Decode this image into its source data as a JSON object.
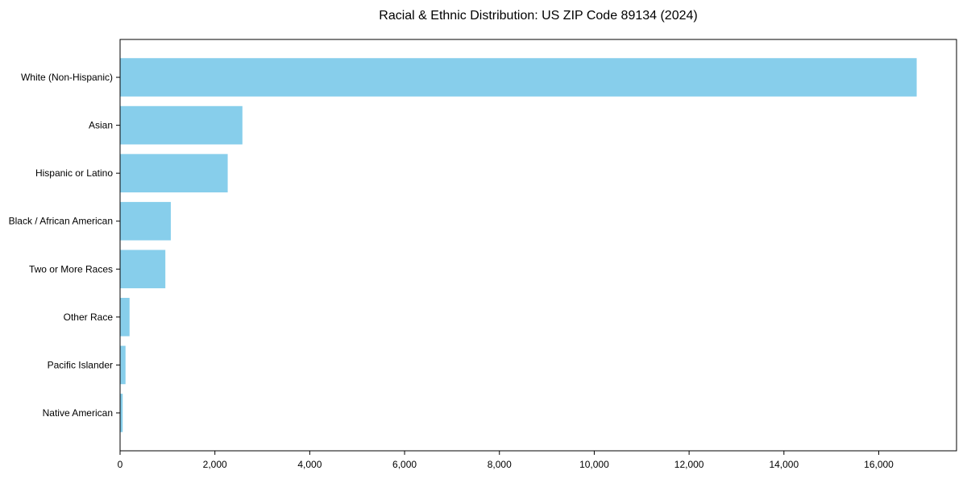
{
  "title": "Racial & Ethnic Distribution: US ZIP Code 89134 (2024)",
  "chart_data": {
    "type": "bar",
    "orientation": "horizontal",
    "title": "Racial & Ethnic Distribution: US ZIP Code 89134 (2024)",
    "categories": [
      "White (Non-Hispanic)",
      "Asian",
      "Hispanic or Latino",
      "Black / African American",
      "Two or More Races",
      "Other Race",
      "Pacific Islander",
      "Native American"
    ],
    "values": [
      16800,
      2580,
      2270,
      1070,
      955,
      200,
      115,
      55
    ],
    "xlabel": "",
    "ylabel": "",
    "xlim": [
      0,
      17640
    ],
    "x_ticks": [
      0,
      2000,
      4000,
      6000,
      8000,
      10000,
      12000,
      14000,
      16000
    ],
    "x_tick_labels": [
      "0",
      "2,000",
      "4,000",
      "6,000",
      "8,000",
      "10,000",
      "12,000",
      "14,000",
      "16,000"
    ],
    "grid": false,
    "legend": null,
    "bar_color": "#87CEEB"
  },
  "colors": {
    "bar": "#87CEEB",
    "axis": "#000000",
    "text": "#000000",
    "background": "#FFFFFF"
  }
}
